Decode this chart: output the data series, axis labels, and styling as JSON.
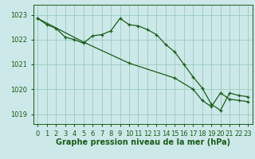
{
  "bg_color": "#cce8e8",
  "grid_color": "#99ccbb",
  "line_color": "#1a5c1a",
  "marker_color": "#1a5c1a",
  "xlabel": "Graphe pression niveau de la mer (hPa)",
  "xlabel_fontsize": 7,
  "tick_fontsize": 6,
  "ylim": [
    1018.6,
    1023.4
  ],
  "xlim": [
    -0.5,
    23.5
  ],
  "yticks": [
    1019,
    1020,
    1021,
    1022,
    1023
  ],
  "xticks": [
    0,
    1,
    2,
    3,
    4,
    5,
    6,
    7,
    8,
    9,
    10,
    11,
    12,
    13,
    14,
    15,
    16,
    17,
    18,
    19,
    20,
    21,
    22,
    23
  ],
  "series1_x": [
    0,
    1,
    2,
    3,
    4,
    5,
    6,
    7,
    8,
    9,
    10,
    11,
    12,
    13,
    14,
    15,
    16,
    17,
    18,
    19,
    20,
    21,
    22,
    23
  ],
  "series1_y": [
    1022.85,
    1022.6,
    1022.45,
    1022.1,
    1022.0,
    1021.85,
    1022.15,
    1022.2,
    1022.35,
    1022.85,
    1022.6,
    1022.55,
    1022.4,
    1022.2,
    1021.8,
    1021.5,
    1021.0,
    1020.5,
    1020.05,
    1019.4,
    1019.15,
    1019.85,
    1019.75,
    1019.7
  ],
  "series2_x": [
    0,
    5,
    10,
    15,
    17,
    18,
    19,
    20,
    21,
    22,
    23
  ],
  "series2_y": [
    1022.85,
    1021.9,
    1021.05,
    1020.45,
    1020.0,
    1019.55,
    1019.3,
    1019.85,
    1019.6,
    1019.55,
    1019.5
  ]
}
